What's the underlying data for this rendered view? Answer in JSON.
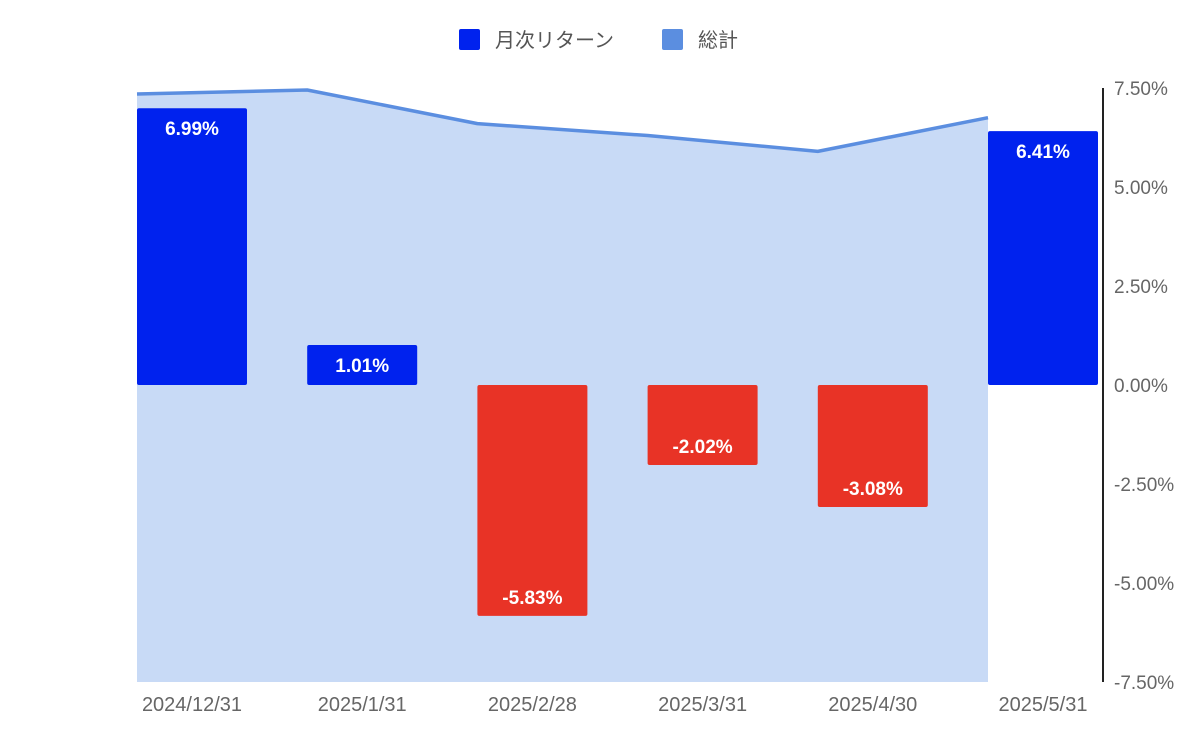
{
  "chart_data": {
    "type": "bar",
    "categories": [
      "2024/12/31",
      "2025/1/31",
      "2025/2/28",
      "2025/3/31",
      "2025/4/30",
      "2025/5/31"
    ],
    "series": [
      {
        "name": "月次リターン",
        "type": "bar",
        "values": [
          6.99,
          1.01,
          -5.83,
          -2.02,
          -3.08,
          6.41
        ],
        "data_labels": [
          "6.99%",
          "1.01%",
          "-5.83%",
          "-2.02%",
          "-3.08%",
          "6.41%"
        ],
        "color_positive": "#0022ee",
        "color_negative": "#e83326"
      },
      {
        "name": "総計",
        "type": "area",
        "values": [
          7.35,
          7.45,
          6.6,
          6.3,
          5.9,
          6.75
        ],
        "line_color": "#5b8ee0",
        "fill_color": "#c8daf6"
      }
    ],
    "y_axis": {
      "position": "right",
      "ylim": [
        -7.5,
        7.5
      ],
      "ticks": [
        7.5,
        5.0,
        2.5,
        0.0,
        -2.5,
        -5.0,
        -7.5
      ],
      "tick_labels": [
        "7.50%",
        "5.00%",
        "2.50%",
        "0.00%",
        "-2.50%",
        "-5.00%",
        "-7.50%"
      ]
    },
    "legend": {
      "position": "top",
      "items": [
        {
          "label": "月次リターン",
          "color": "#0022ee"
        },
        {
          "label": "総計",
          "color": "#5b8ee0"
        }
      ]
    },
    "grid": false
  }
}
